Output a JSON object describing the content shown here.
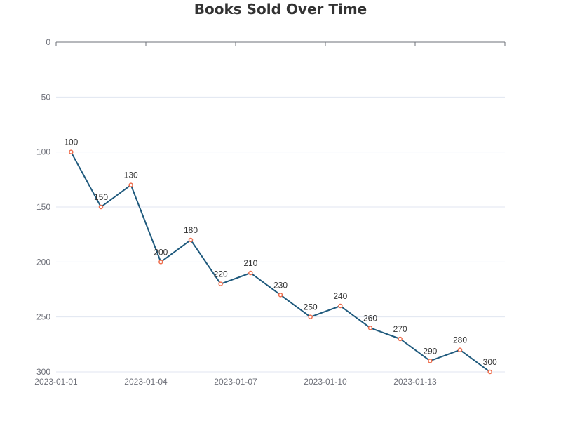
{
  "chart_data": {
    "type": "line",
    "title": "Books Sold Over Time",
    "xlabel": "",
    "ylabel": "",
    "x": [
      "2023-01-01",
      "2023-01-02",
      "2023-01-03",
      "2023-01-04",
      "2023-01-05",
      "2023-01-06",
      "2023-01-07",
      "2023-01-08",
      "2023-01-09",
      "2023-01-10",
      "2023-01-11",
      "2023-01-12",
      "2023-01-13",
      "2023-01-14",
      "2023-01-15"
    ],
    "x_tick_labels": [
      "2023-01-01",
      "2023-01-04",
      "2023-01-07",
      "2023-01-10",
      "2023-01-13"
    ],
    "series": [
      {
        "values": [
          100,
          150,
          130,
          200,
          180,
          220,
          210,
          230,
          250,
          240,
          260,
          270,
          290,
          280,
          300
        ]
      }
    ],
    "ylim": [
      0,
      300
    ],
    "y_ticks": [
      0,
      50,
      100,
      150,
      200,
      250,
      300
    ],
    "y_inverted": true,
    "grid": true,
    "legend": "none",
    "colors": {
      "line": "#1f5a7d",
      "marker_fill": "#ffffff",
      "marker_stroke": "#ee6e4d",
      "grid": "#e0e6f1",
      "axis": "#6e7079"
    }
  }
}
